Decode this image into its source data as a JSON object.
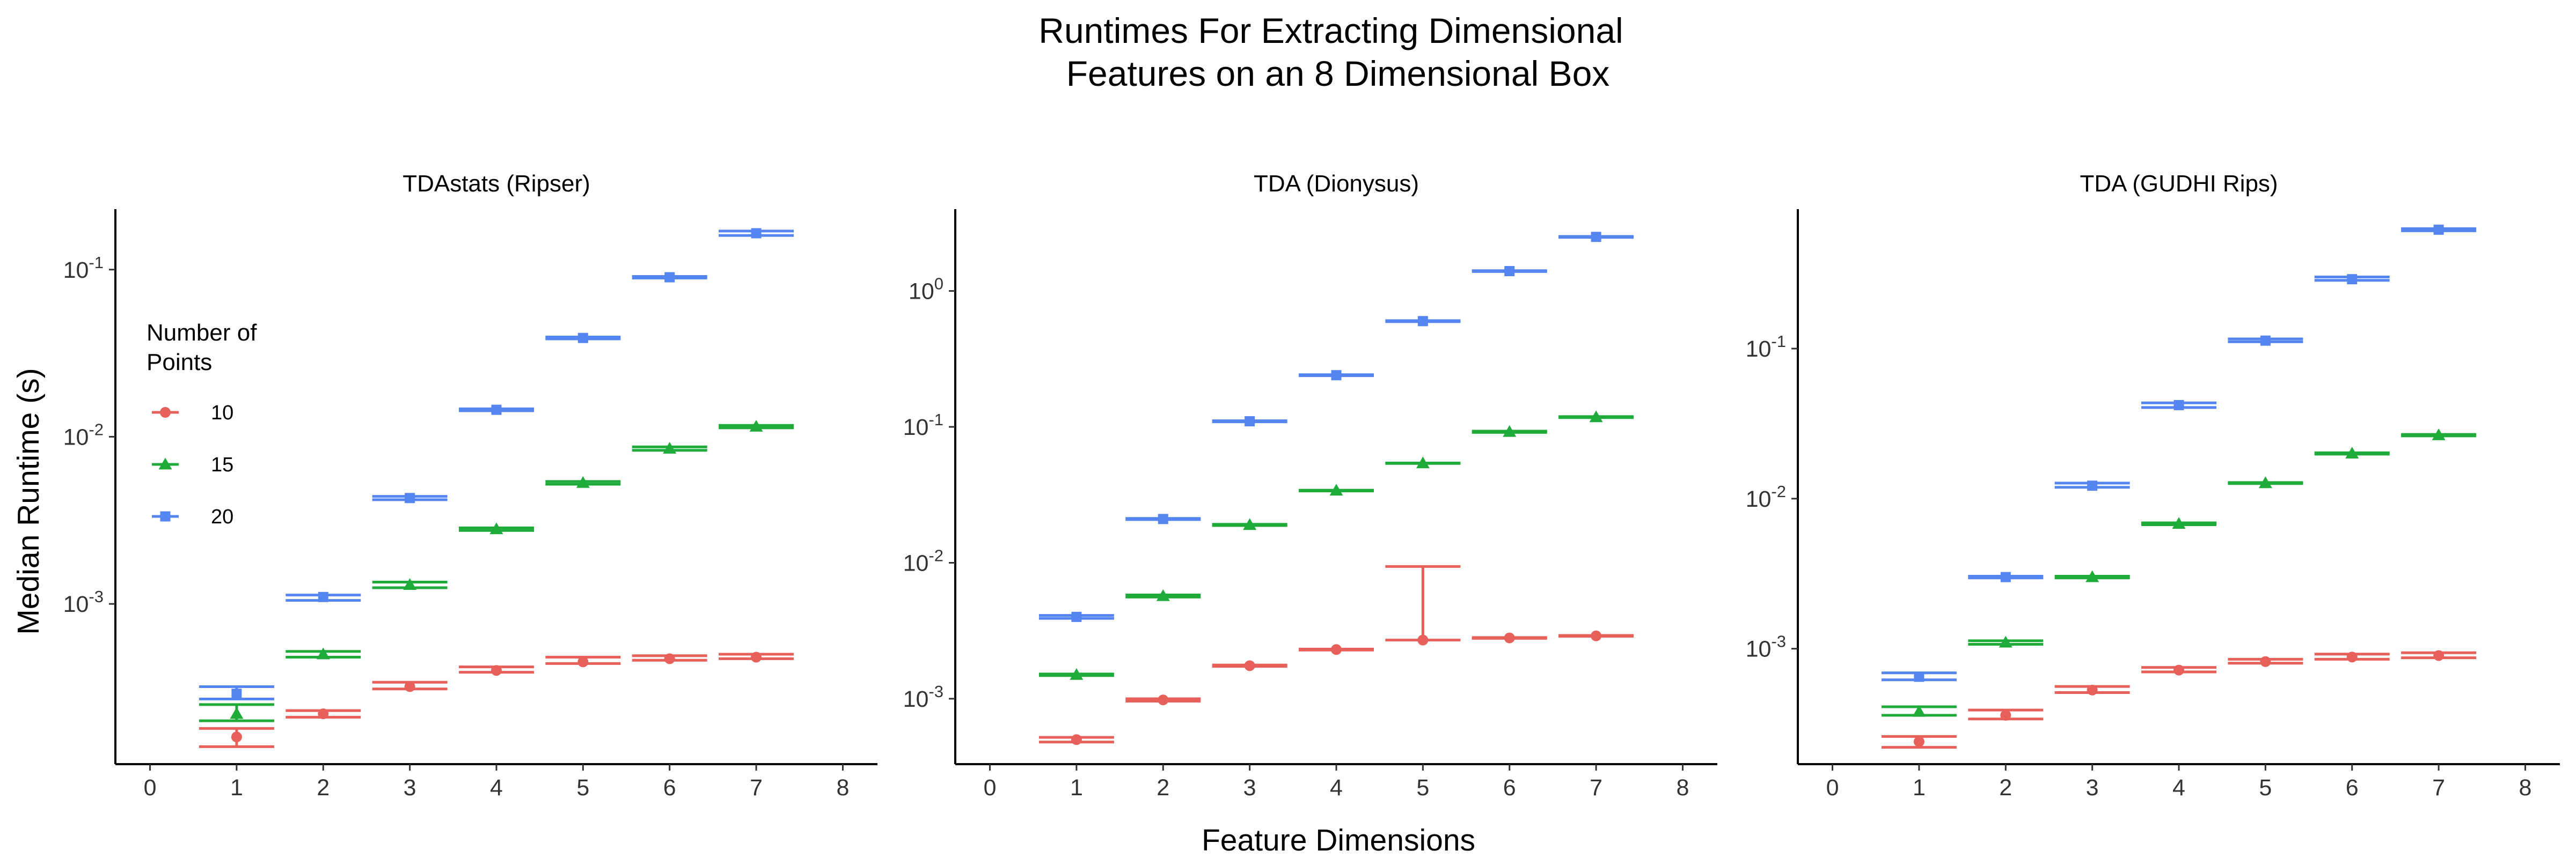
{
  "title_lines": [
    "Runtimes For Extracting Dimensional",
    "Features on an 8 Dimensional Box"
  ],
  "colors": {
    "10": "#e8605a",
    "15": "#1fab3a",
    "20": "#5585f0"
  },
  "chart_data": {
    "type": "errorbar",
    "title": "Runtimes For Extracting Dimensional Features on an 8 Dimensional Box",
    "xlabel": "Feature Dimensions",
    "ylabel": "Median Runtime (s)",
    "xlim": [
      -0.4,
      8.4
    ],
    "x_ticks": [
      0,
      1,
      2,
      3,
      4,
      5,
      6,
      7,
      8
    ],
    "y_scale": "log",
    "grid": false,
    "legend": {
      "title_lines": [
        "Number of",
        "Points"
      ],
      "position": "inside top-left of first panel",
      "entries": [
        {
          "label": "10",
          "marker": "circle",
          "color": "#e8605a"
        },
        {
          "label": "15",
          "marker": "triangle",
          "color": "#1fab3a"
        },
        {
          "label": "20",
          "marker": "square",
          "color": "#5585f0"
        }
      ]
    },
    "panels": [
      {
        "title": "TDAstats (Ripser)",
        "ylim": [
          0.00011,
          0.23
        ],
        "y_ticks": [
          {
            "value": 0.001,
            "exp": "-3"
          },
          {
            "value": 0.01,
            "exp": "-2"
          },
          {
            "value": 0.1,
            "exp": "-1"
          }
        ],
        "series": [
          {
            "name": "10",
            "marker": "circle",
            "x": [
              1,
              2,
              3,
              4,
              5,
              6,
              7
            ],
            "y": [
              0.00016,
              0.00022,
              0.00032,
              0.0004,
              0.00045,
              0.00047,
              0.00048
            ],
            "lo": [
              0.00014,
              0.00021,
              0.00031,
              0.00039,
              0.00044,
              0.00046,
              0.00047
            ],
            "hi": [
              0.00018,
              0.00023,
              0.00034,
              0.00042,
              0.00048,
              0.00049,
              0.0005
            ]
          },
          {
            "name": "15",
            "marker": "triangle",
            "x": [
              1,
              2,
              3,
              4,
              5,
              6,
              7
            ],
            "y": [
              0.00022,
              0.0005,
              0.0013,
              0.0028,
              0.0053,
              0.0085,
              0.0115
            ],
            "lo": [
              0.0002,
              0.00048,
              0.00125,
              0.00275,
              0.0052,
              0.0083,
              0.0113
            ],
            "hi": [
              0.00025,
              0.00052,
              0.00135,
              0.00285,
              0.0054,
              0.0087,
              0.0117
            ]
          },
          {
            "name": "20",
            "marker": "square",
            "x": [
              1,
              2,
              3,
              4,
              5,
              6,
              7
            ],
            "y": [
              0.00029,
              0.0011,
              0.0043,
              0.0145,
              0.039,
              0.09,
              0.165
            ],
            "lo": [
              0.00027,
              0.00105,
              0.0042,
              0.0143,
              0.0385,
              0.089,
              0.16
            ],
            "hi": [
              0.00032,
              0.00113,
              0.0044,
              0.0147,
              0.0395,
              0.091,
              0.17
            ]
          }
        ]
      },
      {
        "title": "TDA (Dionysus)",
        "ylim": [
          0.00033,
          4.0
        ],
        "y_ticks": [
          {
            "value": 0.001,
            "exp": "-3"
          },
          {
            "value": 0.01,
            "exp": "-2"
          },
          {
            "value": 0.1,
            "exp": "-1"
          },
          {
            "value": 1,
            "exp": "0"
          }
        ],
        "series": [
          {
            "name": "10",
            "marker": "circle",
            "x": [
              1,
              2,
              3,
              4,
              5,
              6,
              7
            ],
            "y": [
              0.0005,
              0.00098,
              0.00175,
              0.0023,
              0.0027,
              0.0028,
              0.0029
            ],
            "lo": [
              0.00048,
              0.00096,
              0.00173,
              0.00228,
              0.0027,
              0.00278,
              0.00288
            ],
            "hi": [
              0.00052,
              0.001,
              0.00177,
              0.00232,
              0.0094,
              0.00282,
              0.00292
            ]
          },
          {
            "name": "15",
            "marker": "triangle",
            "x": [
              1,
              2,
              3,
              4,
              5,
              6,
              7
            ],
            "y": [
              0.0015,
              0.0057,
              0.019,
              0.034,
              0.054,
              0.092,
              0.118
            ],
            "lo": [
              0.00148,
              0.0056,
              0.0188,
              0.0338,
              0.0538,
              0.091,
              0.117
            ],
            "hi": [
              0.00152,
              0.0058,
              0.0192,
              0.0342,
              0.0542,
              0.093,
              0.119
            ]
          },
          {
            "name": "20",
            "marker": "square",
            "x": [
              1,
              2,
              3,
              4,
              5,
              6,
              7
            ],
            "y": [
              0.004,
              0.021,
              0.11,
              0.24,
              0.6,
              1.4,
              2.5
            ],
            "lo": [
              0.0039,
              0.0208,
              0.109,
              0.238,
              0.595,
              1.39,
              2.48
            ],
            "hi": [
              0.0041,
              0.0212,
              0.111,
              0.242,
              0.605,
              1.41,
              2.52
            ]
          }
        ]
      },
      {
        "title": "TDA (GUDHI Rips)",
        "ylim": [
          0.00017,
          0.85
        ],
        "y_ticks": [
          {
            "value": 0.001,
            "exp": "-3"
          },
          {
            "value": 0.01,
            "exp": "-2"
          },
          {
            "value": 0.1,
            "exp": "-1"
          }
        ],
        "series": [
          {
            "name": "10",
            "marker": "circle",
            "x": [
              1,
              2,
              3,
              4,
              5,
              6,
              7
            ],
            "y": [
              0.00024,
              0.00036,
              0.00053,
              0.00072,
              0.00082,
              0.00088,
              0.0009
            ],
            "lo": [
              0.00022,
              0.00034,
              0.00051,
              0.0007,
              0.0008,
              0.00085,
              0.00087
            ],
            "hi": [
              0.00026,
              0.00039,
              0.00056,
              0.00075,
              0.00085,
              0.00092,
              0.00094
            ]
          },
          {
            "name": "15",
            "marker": "triangle",
            "x": [
              1,
              2,
              3,
              4,
              5,
              6,
              7
            ],
            "y": [
              0.00038,
              0.0011,
              0.003,
              0.0068,
              0.0127,
              0.02,
              0.0265
            ],
            "lo": [
              0.00036,
              0.00107,
              0.00296,
              0.0067,
              0.0126,
              0.0198,
              0.0262
            ],
            "hi": [
              0.00041,
              0.00113,
              0.00304,
              0.0069,
              0.0128,
              0.0202,
              0.0268
            ]
          },
          {
            "name": "20",
            "marker": "square",
            "x": [
              1,
              2,
              3,
              4,
              5,
              6,
              7
            ],
            "y": [
              0.00065,
              0.003,
              0.0122,
              0.042,
              0.113,
              0.29,
              0.62
            ],
            "lo": [
              0.00062,
              0.00296,
              0.0119,
              0.0405,
              0.111,
              0.285,
              0.61
            ],
            "hi": [
              0.00069,
              0.00304,
              0.0127,
              0.0435,
              0.116,
              0.3,
              0.63
            ]
          }
        ]
      }
    ]
  }
}
